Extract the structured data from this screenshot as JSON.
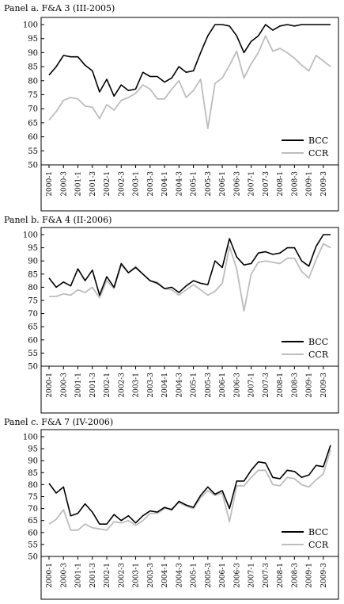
{
  "chart_data": [
    {
      "type": "line",
      "title": "Panel a. F&A 3 (III-2005)",
      "x": [
        "2000-1",
        "2000-2",
        "2000-3",
        "2000-4",
        "2001-1",
        "2001-2",
        "2001-3",
        "2001-4",
        "2002-1",
        "2002-2",
        "2002-3",
        "2002-4",
        "2003-1",
        "2003-2",
        "2003-3",
        "2003-4",
        "2004-1",
        "2004-2",
        "2004-3",
        "2004-4",
        "2005-1",
        "2005-2",
        "2005-3",
        "2005-4",
        "2006-1",
        "2006-2",
        "2006-3",
        "2006-4",
        "2007-1",
        "2007-2",
        "2007-3",
        "2007-4",
        "2008-1",
        "2008-2",
        "2008-3",
        "2008-4",
        "2009-1",
        "2009-2",
        "2009-3",
        "2009-4"
      ],
      "xticks": [
        "2000-1",
        "2000-3",
        "2001-1",
        "2001-3",
        "2002-1",
        "2002-3",
        "2003-1",
        "2003-3",
        "2004-1",
        "2004-3",
        "2005-1",
        "2005-3",
        "2006-1",
        "2006-3",
        "2007-1",
        "2007-3",
        "2008-1",
        "2008-3",
        "2009-1",
        "2009-3"
      ],
      "ylim": [
        50,
        100
      ],
      "yticks": [
        50,
        55,
        60,
        65,
        70,
        75,
        80,
        85,
        90,
        95,
        100
      ],
      "legend_position": "bottom-right",
      "series": [
        {
          "name": "BCC",
          "color": "#000000",
          "values": [
            82,
            85,
            89,
            88.5,
            88.5,
            85.5,
            83.5,
            76,
            80.5,
            74.5,
            78.5,
            76.5,
            77,
            83,
            81.5,
            81.5,
            79.5,
            81,
            85,
            83,
            83.5,
            90,
            96,
            100,
            100,
            99.5,
            96,
            90,
            94,
            96,
            100,
            98,
            99.5,
            100,
            99.5,
            100,
            100,
            100,
            100,
            100
          ]
        },
        {
          "name": "CCR",
          "color": "#bdbdbd",
          "values": [
            66,
            69,
            73,
            74,
            73.5,
            71,
            70.5,
            66.5,
            71.5,
            69.5,
            73,
            74,
            75.5,
            78.5,
            77,
            73.5,
            73.5,
            77,
            80,
            74,
            76.5,
            80.5,
            63,
            79,
            81,
            85.5,
            90.5,
            81,
            86,
            90,
            96,
            90.5,
            91.5,
            90,
            88,
            85.5,
            83.5,
            89,
            87,
            85
          ]
        }
      ]
    },
    {
      "type": "line",
      "title": "Panel b. F&A 4 (II-2006)",
      "x": [
        "2000-1",
        "2000-2",
        "2000-3",
        "2000-4",
        "2001-1",
        "2001-2",
        "2001-3",
        "2001-4",
        "2002-1",
        "2002-2",
        "2002-3",
        "2002-4",
        "2003-1",
        "2003-2",
        "2003-3",
        "2003-4",
        "2004-1",
        "2004-2",
        "2004-3",
        "2004-4",
        "2005-1",
        "2005-2",
        "2005-3",
        "2005-4",
        "2006-1",
        "2006-2",
        "2006-3",
        "2006-4",
        "2007-1",
        "2007-2",
        "2007-3",
        "2007-4",
        "2008-1",
        "2008-2",
        "2008-3",
        "2008-4",
        "2009-1",
        "2009-2",
        "2009-3",
        "2009-4"
      ],
      "xticks": [
        "2000-1",
        "2000-3",
        "2001-1",
        "2001-3",
        "2002-1",
        "2002-3",
        "2003-1",
        "2003-3",
        "2004-1",
        "2004-3",
        "2005-1",
        "2005-3",
        "2006-1",
        "2006-3",
        "2007-1",
        "2007-3",
        "2008-1",
        "2008-3",
        "2009-1",
        "2009-3"
      ],
      "ylim": [
        50,
        100
      ],
      "yticks": [
        50,
        55,
        60,
        65,
        70,
        75,
        80,
        85,
        90,
        95,
        100
      ],
      "legend_position": "bottom-right",
      "series": [
        {
          "name": "BCC",
          "color": "#000000",
          "values": [
            83.5,
            80,
            82,
            80.5,
            87,
            82.5,
            86.5,
            77,
            84,
            80,
            89,
            85.5,
            87.5,
            85,
            82.5,
            81.5,
            79.5,
            80,
            78,
            80.5,
            82.5,
            81.5,
            81,
            90,
            87.5,
            98.5,
            91.5,
            88.5,
            89,
            93,
            93.5,
            92.5,
            93,
            95,
            95,
            90,
            88,
            95.5,
            100,
            100
          ]
        },
        {
          "name": "CCR",
          "color": "#bdbdbd",
          "values": [
            76.5,
            76.5,
            77.5,
            77,
            79,
            78,
            80,
            76,
            82.5,
            79.5,
            88.5,
            85.5,
            88,
            85,
            82.5,
            82,
            79.5,
            79,
            77,
            79,
            81,
            79,
            77,
            78.5,
            81.5,
            95.5,
            87,
            71,
            85,
            89.5,
            90,
            89.5,
            89,
            91,
            91,
            86,
            83.5,
            90.5,
            96.5,
            95
          ]
        }
      ]
    },
    {
      "type": "line",
      "title": "Panel c. F&A 7 (IV-2006)",
      "x": [
        "2000-1",
        "2000-2",
        "2000-3",
        "2000-4",
        "2001-1",
        "2001-2",
        "2001-3",
        "2001-4",
        "2002-1",
        "2002-2",
        "2002-3",
        "2002-4",
        "2003-1",
        "2003-2",
        "2003-3",
        "2003-4",
        "2004-1",
        "2004-2",
        "2004-3",
        "2004-4",
        "2005-1",
        "2005-2",
        "2005-3",
        "2005-4",
        "2006-1",
        "2006-2",
        "2006-3",
        "2006-4",
        "2007-1",
        "2007-2",
        "2007-3",
        "2007-4",
        "2008-1",
        "2008-2",
        "2008-3",
        "2008-4",
        "2009-1",
        "2009-2",
        "2009-3",
        "2009-4"
      ],
      "xticks": [
        "2000-1",
        "2000-3",
        "2001-1",
        "2001-3",
        "2002-1",
        "2002-3",
        "2003-1",
        "2003-3",
        "2004-1",
        "2004-3",
        "2005-1",
        "2005-3",
        "2006-1",
        "2006-3",
        "2007-1",
        "2007-3",
        "2008-1",
        "2008-3",
        "2009-1",
        "2009-3"
      ],
      "ylim": [
        50,
        100
      ],
      "yticks": [
        50,
        55,
        60,
        65,
        70,
        75,
        80,
        85,
        90,
        95,
        100
      ],
      "legend_position": "bottom-right",
      "series": [
        {
          "name": "BCC",
          "color": "#000000",
          "values": [
            80.5,
            76.5,
            79,
            67,
            68,
            72,
            68.5,
            63.5,
            63.5,
            67.5,
            65,
            67,
            64,
            67,
            69,
            68.5,
            70.5,
            69.5,
            73,
            71.5,
            70.5,
            75.5,
            79,
            76,
            77.5,
            70,
            81.5,
            81.5,
            86,
            89.5,
            89,
            83,
            82.5,
            86,
            85.5,
            83,
            84,
            88,
            87.5,
            96.5
          ]
        },
        {
          "name": "CCR",
          "color": "#bdbdbd",
          "values": [
            63.5,
            65.5,
            69.5,
            61,
            61,
            63.5,
            62,
            61.5,
            61,
            64.5,
            64,
            65,
            63,
            65,
            68,
            68,
            70,
            70,
            72.5,
            71,
            70,
            74.5,
            77.5,
            75.5,
            76.5,
            64.5,
            79.5,
            79.5,
            83,
            86,
            86,
            80,
            79.5,
            83,
            82.5,
            80,
            79,
            82,
            84.5,
            94.5
          ]
        }
      ]
    }
  ]
}
